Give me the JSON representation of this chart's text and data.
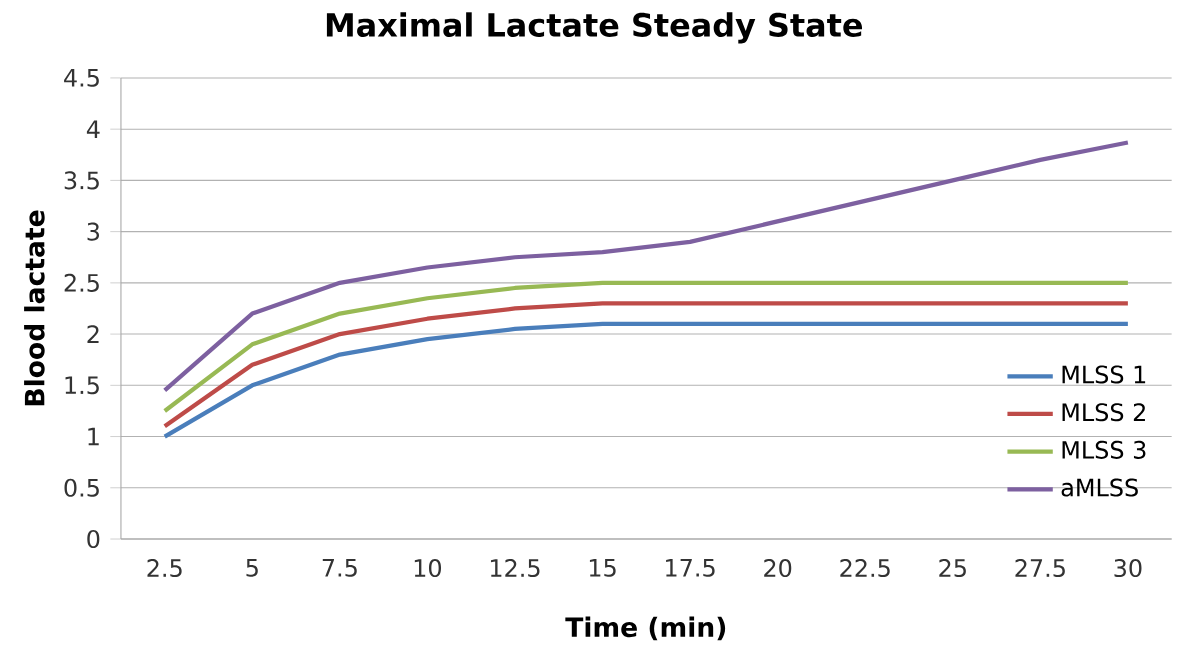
{
  "chart_data": {
    "type": "line",
    "title": "Maximal Lactate Steady State",
    "xlabel": "Time (min)",
    "ylabel": "Blood lactate",
    "categories": [
      "2.5",
      "5",
      "7.5",
      "10",
      "12.5",
      "15",
      "17.5",
      "20",
      "22.5",
      "25",
      "27.5",
      "30"
    ],
    "series": [
      {
        "name": "MLSS 1",
        "color": "#4a7ebb",
        "values": [
          1.0,
          1.5,
          1.8,
          1.95,
          2.05,
          2.1,
          2.1,
          2.1,
          2.1,
          2.1,
          2.1,
          2.1
        ]
      },
      {
        "name": "MLSS 2",
        "color": "#be4b48",
        "values": [
          1.1,
          1.7,
          2.0,
          2.15,
          2.25,
          2.3,
          2.3,
          2.3,
          2.3,
          2.3,
          2.3,
          2.3
        ]
      },
      {
        "name": "MLSS 3",
        "color": "#98b954",
        "values": [
          1.25,
          1.9,
          2.2,
          2.35,
          2.45,
          2.5,
          2.5,
          2.5,
          2.5,
          2.5,
          2.5,
          2.5
        ]
      },
      {
        "name": "aMLSS",
        "color": "#7d60a0",
        "values": [
          1.45,
          2.2,
          2.5,
          2.65,
          2.75,
          2.8,
          2.9,
          3.1,
          3.3,
          3.5,
          3.7,
          3.87
        ]
      }
    ],
    "ylim": [
      0,
      4.5
    ],
    "yticks": [
      0,
      0.5,
      1,
      1.5,
      2,
      2.5,
      3,
      3.5,
      4,
      4.5
    ],
    "grid": "y",
    "legend": "bottom right",
    "marker": "none",
    "line_style": "solid"
  }
}
